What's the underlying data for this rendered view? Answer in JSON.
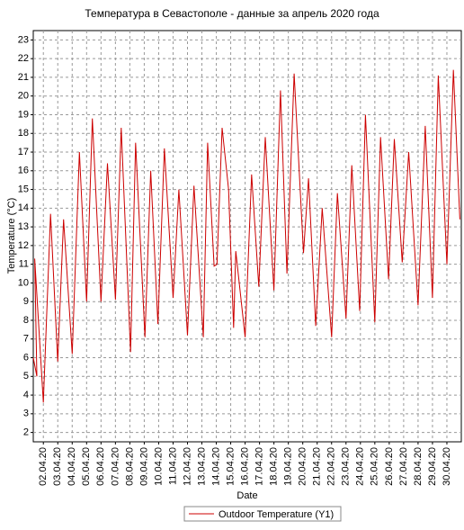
{
  "chart_data": {
    "type": "line",
    "title": "Температура в Севастополе - данные за апрель 2020 года",
    "y_label": "Temperature (°C)",
    "x_label": "Date",
    "legend": "bottom",
    "grid": true,
    "x": [
      1.3,
      1.55,
      1.4,
      2.0,
      2.5,
      3.0,
      3.4,
      4.0,
      4.5,
      5.0,
      5.4,
      6.0,
      6.45,
      7.0,
      7.4,
      8.05,
      8.4,
      9.05,
      9.45,
      9.95,
      10.4,
      11.0,
      11.4,
      12.0,
      12.45,
      13.1,
      13.4,
      13.85,
      14.05,
      14.4,
      14.85,
      15.2,
      15.35,
      16.0,
      16.45,
      16.95,
      17.4,
      18.0,
      18.45,
      18.9,
      19.4,
      20.05,
      20.4,
      20.9,
      21.35,
      22.0,
      22.4,
      23.0,
      23.4,
      23.95,
      24.35,
      25.0,
      25.4,
      25.95,
      26.35,
      26.9,
      27.35,
      28.0,
      28.5,
      29.0,
      29.4,
      30.0,
      30.45,
      30.9
    ],
    "series": [
      {
        "name": "Outdoor Temperature (Y1)",
        "color": "#cc0000",
        "values": [
          6.0,
          5.0,
          11.3,
          3.6,
          13.7,
          5.8,
          13.4,
          6.2,
          17.0,
          9.0,
          18.8,
          9.0,
          16.4,
          9.1,
          18.3,
          6.3,
          17.5,
          7.1,
          16.0,
          7.8,
          17.2,
          9.2,
          15.0,
          7.2,
          15.2,
          7.1,
          17.5,
          10.9,
          11.0,
          18.3,
          15.0,
          7.6,
          11.7,
          7.1,
          15.8,
          9.8,
          17.8,
          9.6,
          20.3,
          10.5,
          21.2,
          11.6,
          15.6,
          7.7,
          14.0,
          7.1,
          14.8,
          8.1,
          16.3,
          8.5,
          19.0,
          7.9,
          17.8,
          10.2,
          17.7,
          11.1,
          17.0,
          8.8,
          18.4,
          9.2,
          21.1,
          11.0,
          21.4,
          13.4
        ]
      }
    ],
    "xlim": [
      1.3,
      31
    ],
    "xticks": [
      {
        "value": 2,
        "label": "02.04.20"
      },
      {
        "value": 3,
        "label": "03.04.20"
      },
      {
        "value": 4,
        "label": "04.04.20"
      },
      {
        "value": 5,
        "label": "05.04.20"
      },
      {
        "value": 6,
        "label": "06.04.20"
      },
      {
        "value": 7,
        "label": "07.04.20"
      },
      {
        "value": 8,
        "label": "08.04.20"
      },
      {
        "value": 9,
        "label": "09.04.20"
      },
      {
        "value": 10,
        "label": "10.04.20"
      },
      {
        "value": 11,
        "label": "11.04.20"
      },
      {
        "value": 12,
        "label": "12.04.20"
      },
      {
        "value": 13,
        "label": "13.04.20"
      },
      {
        "value": 14,
        "label": "14.04.20"
      },
      {
        "value": 15,
        "label": "15.04.20"
      },
      {
        "value": 16,
        "label": "16.04.20"
      },
      {
        "value": 17,
        "label": "17.04.20"
      },
      {
        "value": 18,
        "label": "18.04.20"
      },
      {
        "value": 19,
        "label": "19.04.20"
      },
      {
        "value": 20,
        "label": "20.04.20"
      },
      {
        "value": 21,
        "label": "21.04.20"
      },
      {
        "value": 22,
        "label": "22.04.20"
      },
      {
        "value": 23,
        "label": "23.04.20"
      },
      {
        "value": 24,
        "label": "24.04.20"
      },
      {
        "value": 25,
        "label": "25.04.20"
      },
      {
        "value": 26,
        "label": "26.04.20"
      },
      {
        "value": 27,
        "label": "27.04.20"
      },
      {
        "value": 28,
        "label": "28.04.20"
      },
      {
        "value": 29,
        "label": "29.04.20"
      },
      {
        "value": 30,
        "label": "30.04.20"
      }
    ],
    "ylim": [
      1.5,
      23.5
    ],
    "yticks": [
      2,
      3,
      4,
      5,
      6,
      7,
      8,
      9,
      10,
      11,
      12,
      13,
      14,
      15,
      16,
      17,
      18,
      19,
      20,
      21,
      22,
      23
    ]
  }
}
